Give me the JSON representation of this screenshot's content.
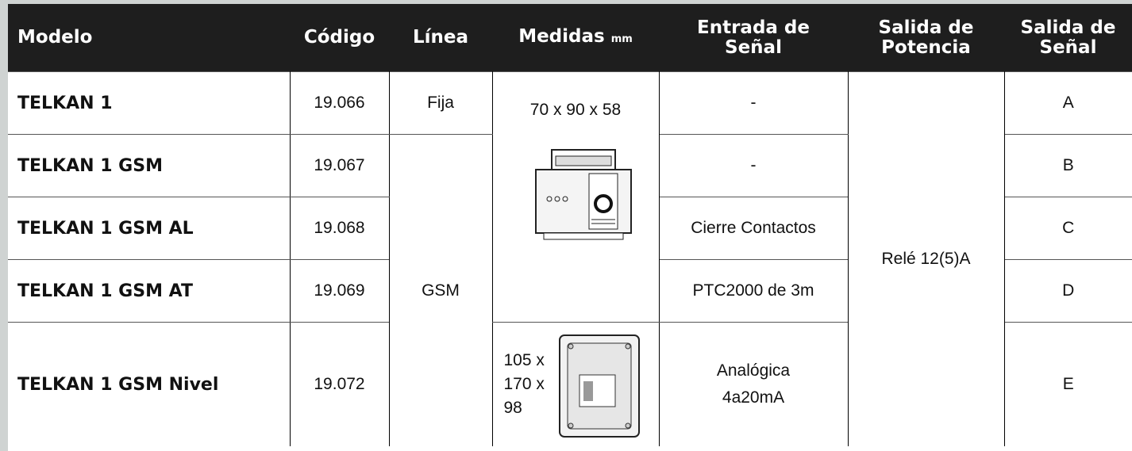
{
  "table": {
    "header": {
      "model": "Modelo",
      "code": "Código",
      "line": "Línea",
      "dims": "Medidas",
      "dims_unit": "mm",
      "input": "Entrada de Señal",
      "power": "Salida de Potencia",
      "output": "Salida de Señal"
    },
    "rows": [
      {
        "model": "TELKAN 1",
        "code": "19.066",
        "input": "-",
        "output": "A"
      },
      {
        "model": "TELKAN 1 GSM",
        "code": "19.067",
        "input": "-",
        "output": "B"
      },
      {
        "model": "TELKAN 1 GSM AL",
        "code": "19.068",
        "input": "Cierre Contactos",
        "output": "C"
      },
      {
        "model": "TELKAN 1 GSM AT",
        "code": "19.069",
        "input": "PTC2000 de 3m",
        "output": "D"
      },
      {
        "model": "TELKAN 1 GSM Nivel",
        "code": "19.072",
        "input": "Analógica 4a20mA",
        "output": "E"
      }
    ],
    "lines": [
      "Fija",
      "GSM"
    ],
    "dims": [
      "70 x 90 x 58",
      "105 x 170 x 98"
    ],
    "power": "Relé 12(5)A"
  }
}
